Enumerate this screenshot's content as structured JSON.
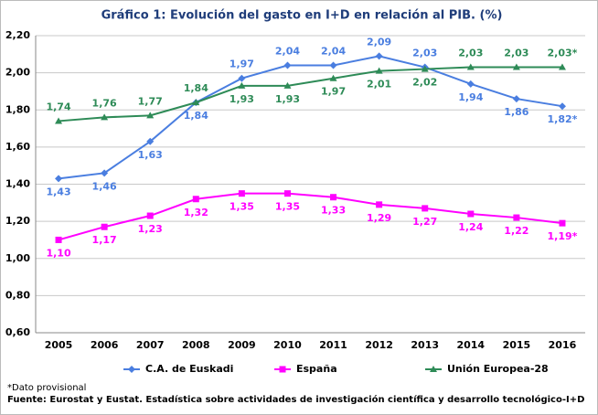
{
  "chart_data": {
    "type": "line",
    "title": "Gráfico 1: Evolución del gasto en I+D en relación al PIB. (%)",
    "categories": [
      "2005",
      "2006",
      "2007",
      "2008",
      "2009",
      "2010",
      "2011",
      "2012",
      "2013",
      "2014",
      "2015",
      "2016"
    ],
    "series": [
      {
        "name": "C.A. de Euskadi",
        "color": "#4a7ee0",
        "marker": "diamond",
        "values": [
          1.43,
          1.46,
          1.63,
          1.84,
          1.97,
          2.04,
          2.04,
          2.09,
          2.03,
          1.94,
          1.86,
          1.82
        ],
        "value_labels": [
          "1,43",
          "1,46",
          "1,63",
          "1,84",
          "1,97",
          "2,04",
          "2,04",
          "2,09",
          "2,03",
          "1,94",
          "1,86",
          "1,82*"
        ]
      },
      {
        "name": "España",
        "color": "#ff00ff",
        "marker": "square",
        "values": [
          1.1,
          1.17,
          1.23,
          1.32,
          1.35,
          1.35,
          1.33,
          1.29,
          1.27,
          1.24,
          1.22,
          1.19
        ],
        "value_labels": [
          "1,10",
          "1,17",
          "1,23",
          "1,32",
          "1,35",
          "1,35",
          "1,33",
          "1,29",
          "1,27",
          "1,24",
          "1,22",
          "1,19*"
        ]
      },
      {
        "name": "Unión Europea-28",
        "color": "#2e8b57",
        "marker": "triangle",
        "values": [
          1.74,
          1.76,
          1.77,
          1.84,
          1.93,
          1.93,
          1.97,
          2.01,
          2.02,
          2.03,
          2.03,
          2.03
        ],
        "value_labels": [
          "1,74",
          "1,76",
          "1,77",
          "1,84",
          "1,93",
          "1,93",
          "1,97",
          "2,01",
          "2,02",
          "2,03",
          "2,03",
          "2,03*"
        ]
      }
    ],
    "ylim": [
      0.6,
      2.2
    ],
    "yticks": [
      {
        "value": 0.6,
        "label": "0,60"
      },
      {
        "value": 0.8,
        "label": "0,80"
      },
      {
        "value": 1.0,
        "label": "1,00"
      },
      {
        "value": 1.2,
        "label": "1,20"
      },
      {
        "value": 1.4,
        "label": "1,40"
      },
      {
        "value": 1.6,
        "label": "1,60"
      },
      {
        "value": 1.8,
        "label": "1,80"
      },
      {
        "value": 2.0,
        "label": "2,00"
      },
      {
        "value": 2.2,
        "label": "2,20"
      }
    ],
    "grid": true,
    "legend": "bottom",
    "footnote": "*Dato provisional",
    "source": "Fuente: Eurostat y Eustat. Estadística sobre actividades de investigación científica y desarrollo tecnológico-I+D"
  }
}
